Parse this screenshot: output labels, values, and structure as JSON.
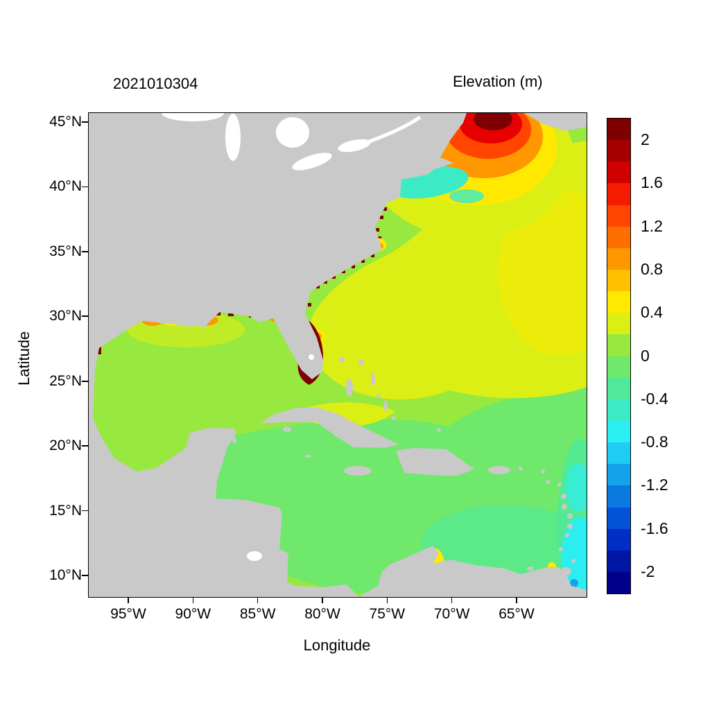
{
  "chart_data": {
    "type": "heatmap",
    "title": "Elevation (m)",
    "subtitle": "2021010304",
    "xlabel": "Longitude",
    "ylabel": "Latitude",
    "x_tick_labels": [
      "95°W",
      "90°W",
      "85°W",
      "80°W",
      "75°W",
      "70°W",
      "65°W"
    ],
    "y_tick_labels": [
      "45°N",
      "40°N",
      "35°N",
      "30°N",
      "25°N",
      "20°N",
      "15°N",
      "10°N"
    ],
    "xlim_deg_west": [
      98.2,
      59.8
    ],
    "ylim_deg_north": [
      8.4,
      45.8
    ],
    "grid": false,
    "legend_position": "right-colorbar",
    "colorbar": {
      "title": "Elevation (m)",
      "ticks": [
        2,
        1.6,
        1.2,
        0.8,
        0.4,
        0,
        -0.4,
        -0.8,
        -1.2,
        -1.6,
        -2
      ],
      "range": [
        -2.2,
        2.2
      ],
      "segment_step": 0.2,
      "colors_top_to_bottom": [
        "#7F0000",
        "#A60000",
        "#D00000",
        "#F51B00",
        "#FF4500",
        "#FF6E00",
        "#FF9700",
        "#FFC000",
        "#FFE900",
        "#DCEF15",
        "#97E83F",
        "#6FE86B",
        "#50E99A",
        "#3AEBC6",
        "#2BEEF0",
        "#1FCDF4",
        "#14A3EA",
        "#0A79E0",
        "#0452D6",
        "#012FC4",
        "#0016A5",
        "#00008B"
      ]
    },
    "field_features": [
      {
        "region": "Gulf of Maine / Bay of Fundy (~67°W, 44-45.5°N)",
        "elevation_m": "1.2 to >2, bullseye maximum (dark red core, orange/yellow rings)"
      },
      {
        "region": "Southeast Florida coast (~80°W, 25-28°N)",
        "elevation_m": ">2 dark-red coastal band"
      },
      {
        "region": "Northern Gulf of Mexico coast (95-86°W, ~29-30°N)",
        "elevation_m": "0.4-1.0 orange/yellow patches with >2 shoreline specks"
      },
      {
        "region": "US east coast shoreline (Georgia to Virginia)",
        "elevation_m": ">2 scattered shoreline specks"
      },
      {
        "region": "Cape Hatteras (~75.5°W, 35°N)",
        "elevation_m": "0.4-1.0 yellow/orange spot"
      },
      {
        "region": "Open NW Atlantic (60-75°W, 25-42°N)",
        "elevation_m": "0.2-0.6 (yellow-green to yellow)"
      },
      {
        "region": "Shelf south of New England (69-75°W, 39-41.5°N)",
        "elevation_m": "-0.6 to -0.4 turquoise band"
      },
      {
        "region": "Gulf of Mexico interior",
        "elevation_m": "0 to 0.2"
      },
      {
        "region": "Caribbean Sea and tropical Atlantic",
        "elevation_m": "-0.4 to 0 (mint green)"
      },
      {
        "region": "Southeast corner near Lesser Antilles (~60-62°W, 9-15°N)",
        "elevation_m": "-1.2 to -0.6 cyan/blue patches"
      },
      {
        "region": "Gulf of Venezuela / Maracaibo (~71.5°W, 10-11.5°N)",
        "elevation_m": "0.4-0.6 yellow spot"
      }
    ]
  },
  "palette": {
    "background": "#FFFFFF",
    "frame": "#000000",
    "land": "#C9C9C9",
    "lake": "#FFFFFF",
    "ocean_base": "#97E83F",
    "yellow_green": "#DCEF15",
    "yellow": "#FFE900",
    "orange": "#FF9700",
    "red_orange": "#FF4500",
    "red": "#E80000",
    "dark_red": "#7F0000",
    "mint_green": "#6FE86B",
    "mint2": "#50E99A",
    "teal": "#3AEBC6",
    "cyan": "#2BEEF0",
    "blue": "#14A3EA",
    "deep_blue": "#0452D6"
  }
}
